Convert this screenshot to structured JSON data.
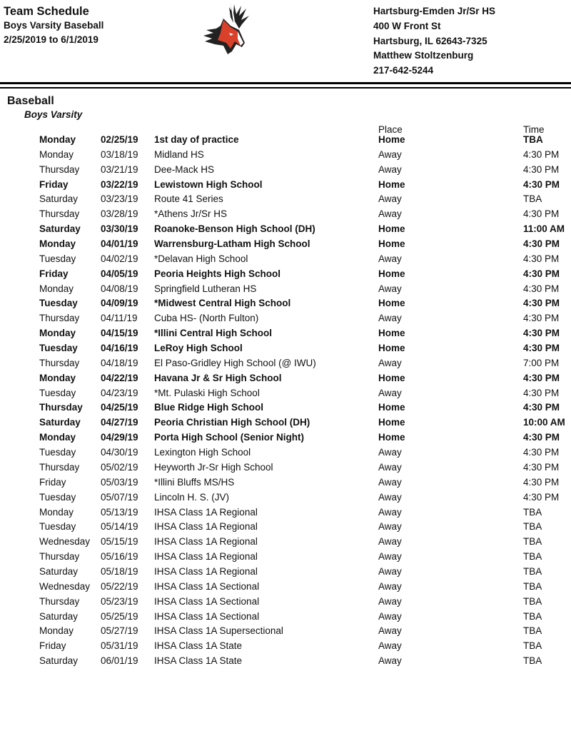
{
  "header": {
    "title": "Team Schedule",
    "subtitle": "Boys Varsity Baseball",
    "date_range": "2/25/2019 to 6/1/2019",
    "school": "Hartsburg-Emden Jr/Sr HS",
    "address": "400 W Front St",
    "city": "Hartsburg, IL 62643-7325",
    "contact": "Matthew Stoltzenburg",
    "phone": "217-642-5244",
    "logo": "deer-mascot-logo",
    "accent": "#d9412b"
  },
  "section": {
    "sport": "Baseball",
    "level": "Boys Varsity",
    "place_header": "Place",
    "time_header": "Time"
  },
  "games": [
    {
      "day": "Monday",
      "date": "02/25/19",
      "opponent": "1st day of practice",
      "place": "Home",
      "time": "TBA",
      "bold": true
    },
    {
      "day": "Monday",
      "date": "03/18/19",
      "opponent": "Midland HS",
      "place": "Away",
      "time": "4:30 PM",
      "bold": false
    },
    {
      "day": "Thursday",
      "date": "03/21/19",
      "opponent": "Dee-Mack HS",
      "place": "Away",
      "time": "4:30 PM",
      "bold": false
    },
    {
      "day": "Friday",
      "date": "03/22/19",
      "opponent": "Lewistown High School",
      "place": "Home",
      "time": "4:30 PM",
      "bold": true
    },
    {
      "day": "Saturday",
      "date": "03/23/19",
      "opponent": "Route 41 Series",
      "place": "Away",
      "time": "TBA",
      "bold": false
    },
    {
      "day": "Thursday",
      "date": "03/28/19",
      "opponent": "*Athens Jr/Sr HS",
      "place": "Away",
      "time": "4:30 PM",
      "bold": false
    },
    {
      "day": "Saturday",
      "date": "03/30/19",
      "opponent": "Roanoke-Benson High School (DH)",
      "place": "Home",
      "time": "11:00 AM",
      "bold": true
    },
    {
      "day": "Monday",
      "date": "04/01/19",
      "opponent": "Warrensburg-Latham High School",
      "place": "Home",
      "time": "4:30 PM",
      "bold": true
    },
    {
      "day": "Tuesday",
      "date": "04/02/19",
      "opponent": "*Delavan High School",
      "place": "Away",
      "time": "4:30 PM",
      "bold": false
    },
    {
      "day": "Friday",
      "date": "04/05/19",
      "opponent": "Peoria Heights High School",
      "place": "Home",
      "time": "4:30 PM",
      "bold": true
    },
    {
      "day": "Monday",
      "date": "04/08/19",
      "opponent": "Springfield Lutheran HS",
      "place": "Away",
      "time": "4:30 PM",
      "bold": false
    },
    {
      "day": "Tuesday",
      "date": "04/09/19",
      "opponent": "*Midwest Central High School",
      "place": "Home",
      "time": "4:30 PM",
      "bold": true
    },
    {
      "day": "Thursday",
      "date": "04/11/19",
      "opponent": "Cuba HS- (North Fulton)",
      "place": "Away",
      "time": "4:30 PM",
      "bold": false
    },
    {
      "day": "Monday",
      "date": "04/15/19",
      "opponent": "*Illini Central High School",
      "place": "Home",
      "time": "4:30 PM",
      "bold": true
    },
    {
      "day": "Tuesday",
      "date": "04/16/19",
      "opponent": "LeRoy High School",
      "place": "Home",
      "time": "4:30 PM",
      "bold": true
    },
    {
      "day": "Thursday",
      "date": "04/18/19",
      "opponent": "El Paso-Gridley High School (@ IWU)",
      "place": "Away",
      "time": "7:00 PM",
      "bold": false
    },
    {
      "day": "Monday",
      "date": "04/22/19",
      "opponent": "Havana Jr & Sr High School",
      "place": "Home",
      "time": "4:30 PM",
      "bold": true
    },
    {
      "day": "Tuesday",
      "date": "04/23/19",
      "opponent": "*Mt. Pulaski High School",
      "place": "Away",
      "time": "4:30 PM",
      "bold": false
    },
    {
      "day": "Thursday",
      "date": "04/25/19",
      "opponent": "Blue Ridge High School",
      "place": "Home",
      "time": "4:30 PM",
      "bold": true
    },
    {
      "day": "Saturday",
      "date": "04/27/19",
      "opponent": "Peoria Christian High School (DH)",
      "place": "Home",
      "time": "10:00 AM",
      "bold": true
    },
    {
      "day": "Monday",
      "date": "04/29/19",
      "opponent": "Porta High School (Senior Night)",
      "place": "Home",
      "time": "4:30 PM",
      "bold": true
    },
    {
      "day": "Tuesday",
      "date": "04/30/19",
      "opponent": "Lexington High School",
      "place": "Away",
      "time": "4:30 PM",
      "bold": false
    },
    {
      "day": "Thursday",
      "date": "05/02/19",
      "opponent": "Heyworth Jr-Sr High School",
      "place": "Away",
      "time": "4:30 PM",
      "bold": false
    },
    {
      "day": "Friday",
      "date": "05/03/19",
      "opponent": "*Illini Bluffs MS/HS",
      "place": "Away",
      "time": "4:30 PM",
      "bold": false
    },
    {
      "day": "Tuesday",
      "date": "05/07/19",
      "opponent": "Lincoln H. S. (JV)",
      "place": "Away",
      "time": "4:30 PM",
      "bold": false
    },
    {
      "day": "Monday",
      "date": "05/13/19",
      "opponent": "IHSA Class 1A Regional",
      "place": "Away",
      "time": "TBA",
      "bold": false
    },
    {
      "day": "Tuesday",
      "date": "05/14/19",
      "opponent": "IHSA Class 1A Regional",
      "place": "Away",
      "time": "TBA",
      "bold": false
    },
    {
      "day": "Wednesday",
      "date": "05/15/19",
      "opponent": "IHSA Class 1A Regional",
      "place": "Away",
      "time": "TBA",
      "bold": false
    },
    {
      "day": "Thursday",
      "date": "05/16/19",
      "opponent": "IHSA Class 1A Regional",
      "place": "Away",
      "time": "TBA",
      "bold": false
    },
    {
      "day": "Saturday",
      "date": "05/18/19",
      "opponent": "IHSA Class 1A Regional",
      "place": "Away",
      "time": "TBA",
      "bold": false
    },
    {
      "day": "Wednesday",
      "date": "05/22/19",
      "opponent": "IHSA Class 1A Sectional",
      "place": "Away",
      "time": "TBA",
      "bold": false
    },
    {
      "day": "Thursday",
      "date": "05/23/19",
      "opponent": "IHSA Class 1A Sectional",
      "place": "Away",
      "time": "TBA",
      "bold": false
    },
    {
      "day": "Saturday",
      "date": "05/25/19",
      "opponent": "IHSA Class 1A Sectional",
      "place": "Away",
      "time": "TBA",
      "bold": false
    },
    {
      "day": "Monday",
      "date": "05/27/19",
      "opponent": "IHSA Class 1A Supersectional",
      "place": "Away",
      "time": "TBA",
      "bold": false
    },
    {
      "day": "Friday",
      "date": "05/31/19",
      "opponent": "IHSA Class 1A State",
      "place": "Away",
      "time": "TBA",
      "bold": false
    },
    {
      "day": "Saturday",
      "date": "06/01/19",
      "opponent": "IHSA Class 1A State",
      "place": "Away",
      "time": "TBA",
      "bold": false
    }
  ]
}
